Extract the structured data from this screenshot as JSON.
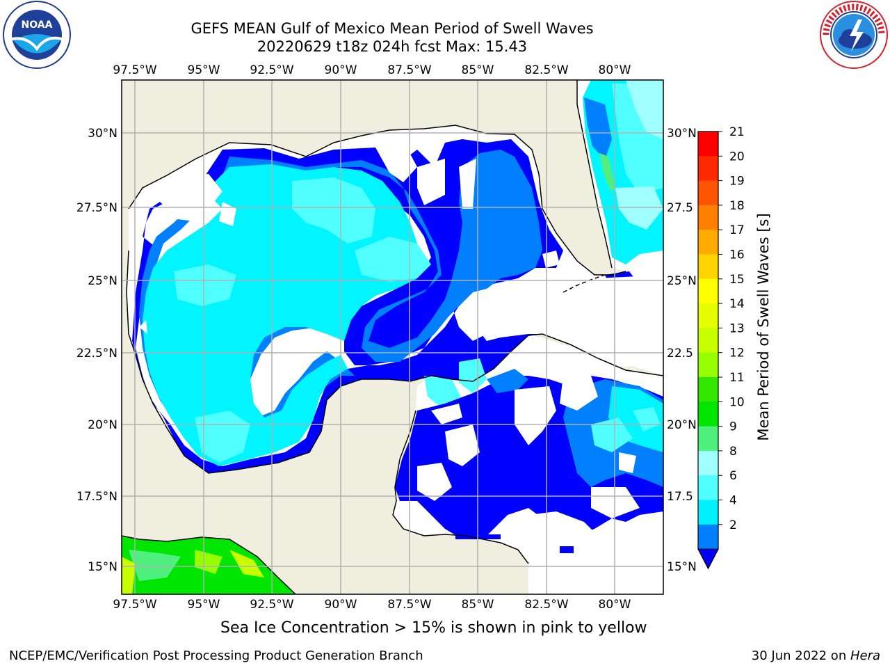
{
  "header": {
    "title": "GEFS MEAN Gulf of Mexico Mean Period of Swell Waves",
    "subtitle": "20220629 t18z 024h fcst   Max: 15.43"
  },
  "axes": {
    "lon_labels": [
      "97.5°W",
      "95°W",
      "92.5°W",
      "90°W",
      "87.5°W",
      "85°W",
      "82.5°W",
      "80°W"
    ],
    "lat_labels_left": [
      "30°N",
      "27.5°N",
      "25°N",
      "22.5°N",
      "20°N",
      "17.5°N",
      "15°N"
    ],
    "lat_labels_right": [
      "30°N",
      "27.5",
      "25°N",
      "22.5",
      "20°N",
      "17.5",
      "15°N"
    ]
  },
  "colorbar": {
    "label": "Mean Period of Swell Waves [s]",
    "ticks": [
      "21",
      "20",
      "19",
      "18",
      "17",
      "16",
      "15",
      "14",
      "13",
      "12",
      "11",
      "10",
      "9",
      "8",
      "6",
      "4",
      "2"
    ],
    "colors": [
      "#ff0000",
      "#ff2a00",
      "#ff5500",
      "#ff8000",
      "#ffaa00",
      "#ffd400",
      "#ffff00",
      "#e6ff00",
      "#c8ff00",
      "#96ff00",
      "#32e600",
      "#00e600",
      "#50f07f",
      "#a0ffff",
      "#50ffff",
      "#00f0ff",
      "#0080ff"
    ]
  },
  "map": {
    "colors": {
      "land": "#efeedf",
      "water_none": "#ffffff",
      "p2_4": "#0000ff",
      "p4_6": "#0080ff",
      "p6_8": "#00f5ff",
      "p8_9": "#50ffff",
      "p9_10": "#a0ffff",
      "green_mid": "#50f07f",
      "green": "#00e600",
      "yellow_green": "#c8ff00"
    }
  },
  "notes": {
    "sea_ice": "Sea Ice Concentration > 15% is shown in pink to yellow"
  },
  "footer": {
    "left": "NCEP/EMC/Verification Post Processing Product Generation Branch",
    "right_prefix": "30 Jun 2022 on ",
    "right_host": "Hera"
  },
  "logos": {
    "left": "noaa-logo",
    "right": "nws-logo"
  }
}
